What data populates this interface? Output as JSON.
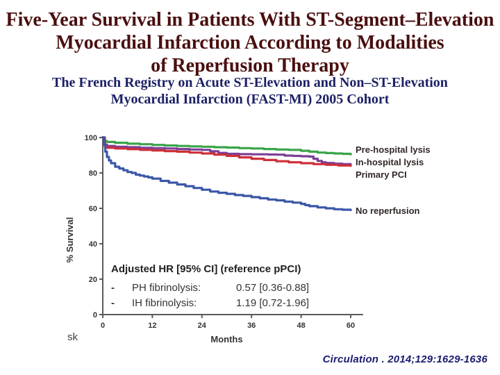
{
  "slide": {
    "title_lines": [
      "Five-Year Survival in Patients With ST-Segment–Elevation",
      "Myocardial Infarction According to Modalities",
      "of Reperfusion Therapy"
    ],
    "subtitle_lines": [
      "The French Registry on Acute ST-Elevation and Non–ST-Elevation",
      "Myocardial Infarction (FAST-MI) 2005 Cohort"
    ],
    "citation": "Circulation . 2014;129:1629-1636",
    "watermark": "sk",
    "colors": {
      "title": "#4a0f0f",
      "subtitle": "#1c2166",
      "citation": "#1b1b70",
      "curve_label": "#322626"
    }
  },
  "chart_data": {
    "type": "line",
    "subtype": "kaplan-meier-step",
    "title": "",
    "xlabel": "Months",
    "ylabel": "% Survival",
    "xlim": [
      0,
      63
    ],
    "ylim": [
      0,
      100
    ],
    "xticks": [
      0,
      12,
      24,
      36,
      48,
      60
    ],
    "yticks": [
      0,
      20,
      40,
      60,
      80,
      100
    ],
    "grid": false,
    "legend_position": "right-of-curves",
    "axis_color": "#5a5a5a",
    "tick_label_color": "#333333",
    "series": [
      {
        "name": "Pre-hospital lysis",
        "color": "#3aa44a",
        "points": [
          [
            0,
            100
          ],
          [
            0.5,
            98
          ],
          [
            1,
            97.5
          ],
          [
            3,
            97
          ],
          [
            6,
            96.5
          ],
          [
            9,
            96.2
          ],
          [
            12,
            95.8
          ],
          [
            15,
            95.5
          ],
          [
            18,
            95.2
          ],
          [
            21,
            95
          ],
          [
            24,
            94.8
          ],
          [
            27,
            94.5
          ],
          [
            30,
            94.3
          ],
          [
            33,
            94
          ],
          [
            36,
            93.8
          ],
          [
            39,
            93.5
          ],
          [
            42,
            93.2
          ],
          [
            45,
            93
          ],
          [
            48,
            92.5
          ],
          [
            50,
            92
          ],
          [
            52,
            91.5
          ],
          [
            54,
            91.2
          ],
          [
            56,
            91
          ],
          [
            58,
            90.8
          ],
          [
            60,
            90.5
          ]
        ]
      },
      {
        "name": "In-hospital lysis",
        "color": "#7c3f97",
        "points": [
          [
            0,
            100
          ],
          [
            0.5,
            96
          ],
          [
            1,
            95.2
          ],
          [
            3,
            94.8
          ],
          [
            6,
            94.5
          ],
          [
            9,
            94.2
          ],
          [
            12,
            94
          ],
          [
            15,
            93.8
          ],
          [
            18,
            93.5
          ],
          [
            21,
            93.2
          ],
          [
            24,
            93
          ],
          [
            26,
            92.2
          ],
          [
            28,
            91.3
          ],
          [
            30,
            90.8
          ],
          [
            33,
            90.6
          ],
          [
            36,
            90.5
          ],
          [
            40,
            90.4
          ],
          [
            42,
            90.3
          ],
          [
            44,
            89.8
          ],
          [
            46,
            89.6
          ],
          [
            48,
            89.4
          ],
          [
            50,
            89.2
          ],
          [
            51,
            88
          ],
          [
            52,
            86.8
          ],
          [
            53,
            86
          ],
          [
            54,
            85.6
          ],
          [
            56,
            85.2
          ],
          [
            58,
            85
          ],
          [
            60,
            84.9
          ]
        ]
      },
      {
        "name": "Primary PCI",
        "color": "#ce2f38",
        "points": [
          [
            0,
            100
          ],
          [
            0.5,
            95
          ],
          [
            1,
            94.2
          ],
          [
            3,
            93.8
          ],
          [
            6,
            93.4
          ],
          [
            9,
            93
          ],
          [
            12,
            92.7
          ],
          [
            15,
            92.3
          ],
          [
            18,
            92
          ],
          [
            21,
            91.5
          ],
          [
            24,
            91
          ],
          [
            27,
            90.3
          ],
          [
            30,
            89.6
          ],
          [
            33,
            88.8
          ],
          [
            36,
            88
          ],
          [
            39,
            87.3
          ],
          [
            42,
            86.6
          ],
          [
            45,
            86
          ],
          [
            48,
            85.5
          ],
          [
            51,
            85
          ],
          [
            54,
            84.6
          ],
          [
            57,
            84.2
          ],
          [
            60,
            84
          ]
        ]
      },
      {
        "name": "No reperfusion",
        "color": "#3a57a8",
        "points": [
          [
            0,
            100
          ],
          [
            0.3,
            96
          ],
          [
            0.6,
            92
          ],
          [
            1,
            89
          ],
          [
            1.5,
            87
          ],
          [
            2,
            85.5
          ],
          [
            3,
            83.5
          ],
          [
            4,
            82.5
          ],
          [
            5,
            81.5
          ],
          [
            6,
            80.5
          ],
          [
            7,
            80
          ],
          [
            8,
            79
          ],
          [
            9,
            78.5
          ],
          [
            10,
            78
          ],
          [
            11,
            77.5
          ],
          [
            12,
            76.8
          ],
          [
            14,
            75.5
          ],
          [
            16,
            74.5
          ],
          [
            18,
            73.5
          ],
          [
            20,
            72.5
          ],
          [
            22,
            71.5
          ],
          [
            24,
            70.5
          ],
          [
            26,
            69.5
          ],
          [
            28,
            68.8
          ],
          [
            30,
            68.2
          ],
          [
            32,
            67.5
          ],
          [
            34,
            67
          ],
          [
            36,
            66.3
          ],
          [
            38,
            65.7
          ],
          [
            40,
            65
          ],
          [
            42,
            64.5
          ],
          [
            44,
            63.8
          ],
          [
            46,
            63.2
          ],
          [
            48,
            62.5
          ],
          [
            49,
            61.8
          ],
          [
            50,
            61.2
          ],
          [
            52,
            60.5
          ],
          [
            54,
            60
          ],
          [
            56,
            59.5
          ],
          [
            58,
            59.2
          ],
          [
            60,
            59
          ]
        ]
      }
    ],
    "annotation": {
      "heading": "Adjusted HR [95% CI] (reference pPCI)",
      "rows": [
        {
          "bullet": "-",
          "label": "PH fibrinolysis:",
          "value": "0.57 [0.36-0.88]"
        },
        {
          "bullet": "-",
          "label": "IH fibrinolysis:",
          "value": "1.19 [0.72-1.96]"
        }
      ]
    }
  }
}
